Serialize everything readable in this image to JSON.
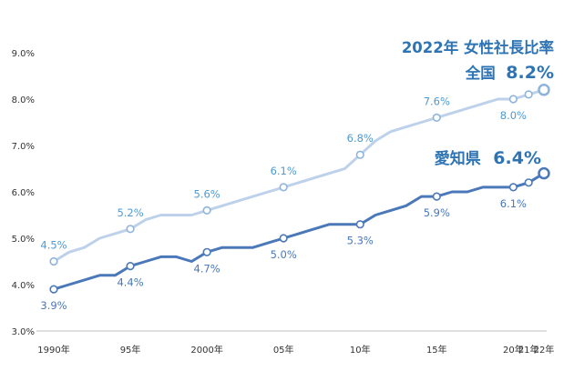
{
  "chart_data": {
    "type": "line",
    "title": "2022年 女性社長比率",
    "ylim": [
      3.0,
      9.0
    ],
    "y_ticks": [
      "3.0%",
      "4.0%",
      "5.0%",
      "6.0%",
      "7.0%",
      "8.0%",
      "9.0%"
    ],
    "x_range": [
      1990,
      2022
    ],
    "x_ticks": [
      {
        "x": 1990,
        "label": "1990年"
      },
      {
        "x": 1995,
        "label": "95年"
      },
      {
        "x": 2000,
        "label": "2000年"
      },
      {
        "x": 2005,
        "label": "05年"
      },
      {
        "x": 2010,
        "label": "10年"
      },
      {
        "x": 2015,
        "label": "15年"
      },
      {
        "x": 2020,
        "label": "20年"
      },
      {
        "x": 2021,
        "label": "21年"
      },
      {
        "x": 2022,
        "label": "22年"
      }
    ],
    "grid": false,
    "series": [
      {
        "name": "全国",
        "color": "#bdd2ea",
        "label_color": "#4f9ad3",
        "x": [
          1990,
          1991,
          1992,
          1993,
          1994,
          1995,
          1996,
          1997,
          1998,
          1999,
          2000,
          2001,
          2002,
          2003,
          2004,
          2005,
          2006,
          2007,
          2008,
          2009,
          2010,
          2011,
          2012,
          2013,
          2014,
          2015,
          2016,
          2017,
          2018,
          2019,
          2020,
          2021,
          2022
        ],
        "values": [
          4.5,
          4.7,
          4.8,
          5.0,
          5.1,
          5.2,
          5.4,
          5.5,
          5.5,
          5.5,
          5.6,
          5.7,
          5.8,
          5.9,
          6.0,
          6.1,
          6.2,
          6.3,
          6.4,
          6.5,
          6.8,
          7.1,
          7.3,
          7.4,
          7.5,
          7.6,
          7.7,
          7.8,
          7.9,
          8.0,
          8.0,
          8.1,
          8.2
        ],
        "markers": [
          1990,
          1995,
          2000,
          2005,
          2010,
          2015,
          2020,
          2021,
          2022
        ],
        "labels": [
          {
            "x": 1990,
            "text": "4.5%",
            "pos": "above"
          },
          {
            "x": 1995,
            "text": "5.2%",
            "pos": "above"
          },
          {
            "x": 2000,
            "text": "5.6%",
            "pos": "above"
          },
          {
            "x": 2005,
            "text": "6.1%",
            "pos": "above"
          },
          {
            "x": 2010,
            "text": "6.8%",
            "pos": "above"
          },
          {
            "x": 2015,
            "text": "7.6%",
            "pos": "above"
          },
          {
            "x": 2020,
            "text": "8.0%",
            "pos": "below"
          }
        ]
      },
      {
        "name": "愛知県",
        "color": "#4a78b8",
        "label_color": "#4a78b8",
        "x": [
          1990,
          1991,
          1992,
          1993,
          1994,
          1995,
          1996,
          1997,
          1998,
          1999,
          2000,
          2001,
          2002,
          2003,
          2004,
          2005,
          2006,
          2007,
          2008,
          2009,
          2010,
          2011,
          2012,
          2013,
          2014,
          2015,
          2016,
          2017,
          2018,
          2019,
          2020,
          2021,
          2022
        ],
        "values": [
          3.9,
          4.0,
          4.1,
          4.2,
          4.2,
          4.4,
          4.5,
          4.6,
          4.6,
          4.5,
          4.7,
          4.8,
          4.8,
          4.8,
          4.9,
          5.0,
          5.1,
          5.2,
          5.3,
          5.3,
          5.3,
          5.5,
          5.6,
          5.7,
          5.9,
          5.9,
          6.0,
          6.0,
          6.1,
          6.1,
          6.1,
          6.2,
          6.4
        ],
        "markers": [
          1990,
          1995,
          2000,
          2005,
          2010,
          2015,
          2020,
          2021,
          2022
        ],
        "labels": [
          {
            "x": 1990,
            "text": "3.9%",
            "pos": "below"
          },
          {
            "x": 1995,
            "text": "4.4%",
            "pos": "below"
          },
          {
            "x": 2000,
            "text": "4.7%",
            "pos": "below"
          },
          {
            "x": 2005,
            "text": "5.0%",
            "pos": "below"
          },
          {
            "x": 2010,
            "text": "5.3%",
            "pos": "below"
          },
          {
            "x": 2015,
            "text": "5.9%",
            "pos": "below"
          },
          {
            "x": 2020,
            "text": "6.1%",
            "pos": "below"
          }
        ]
      }
    ],
    "annotations": {
      "title_line": "2022年 女性社長比率",
      "national_name": "全国",
      "national_value": "8.2%",
      "aichi_name": "愛知県",
      "aichi_value": "6.4%"
    }
  },
  "colors": {
    "annotation": "#2e74b5",
    "axis": "#888888"
  }
}
